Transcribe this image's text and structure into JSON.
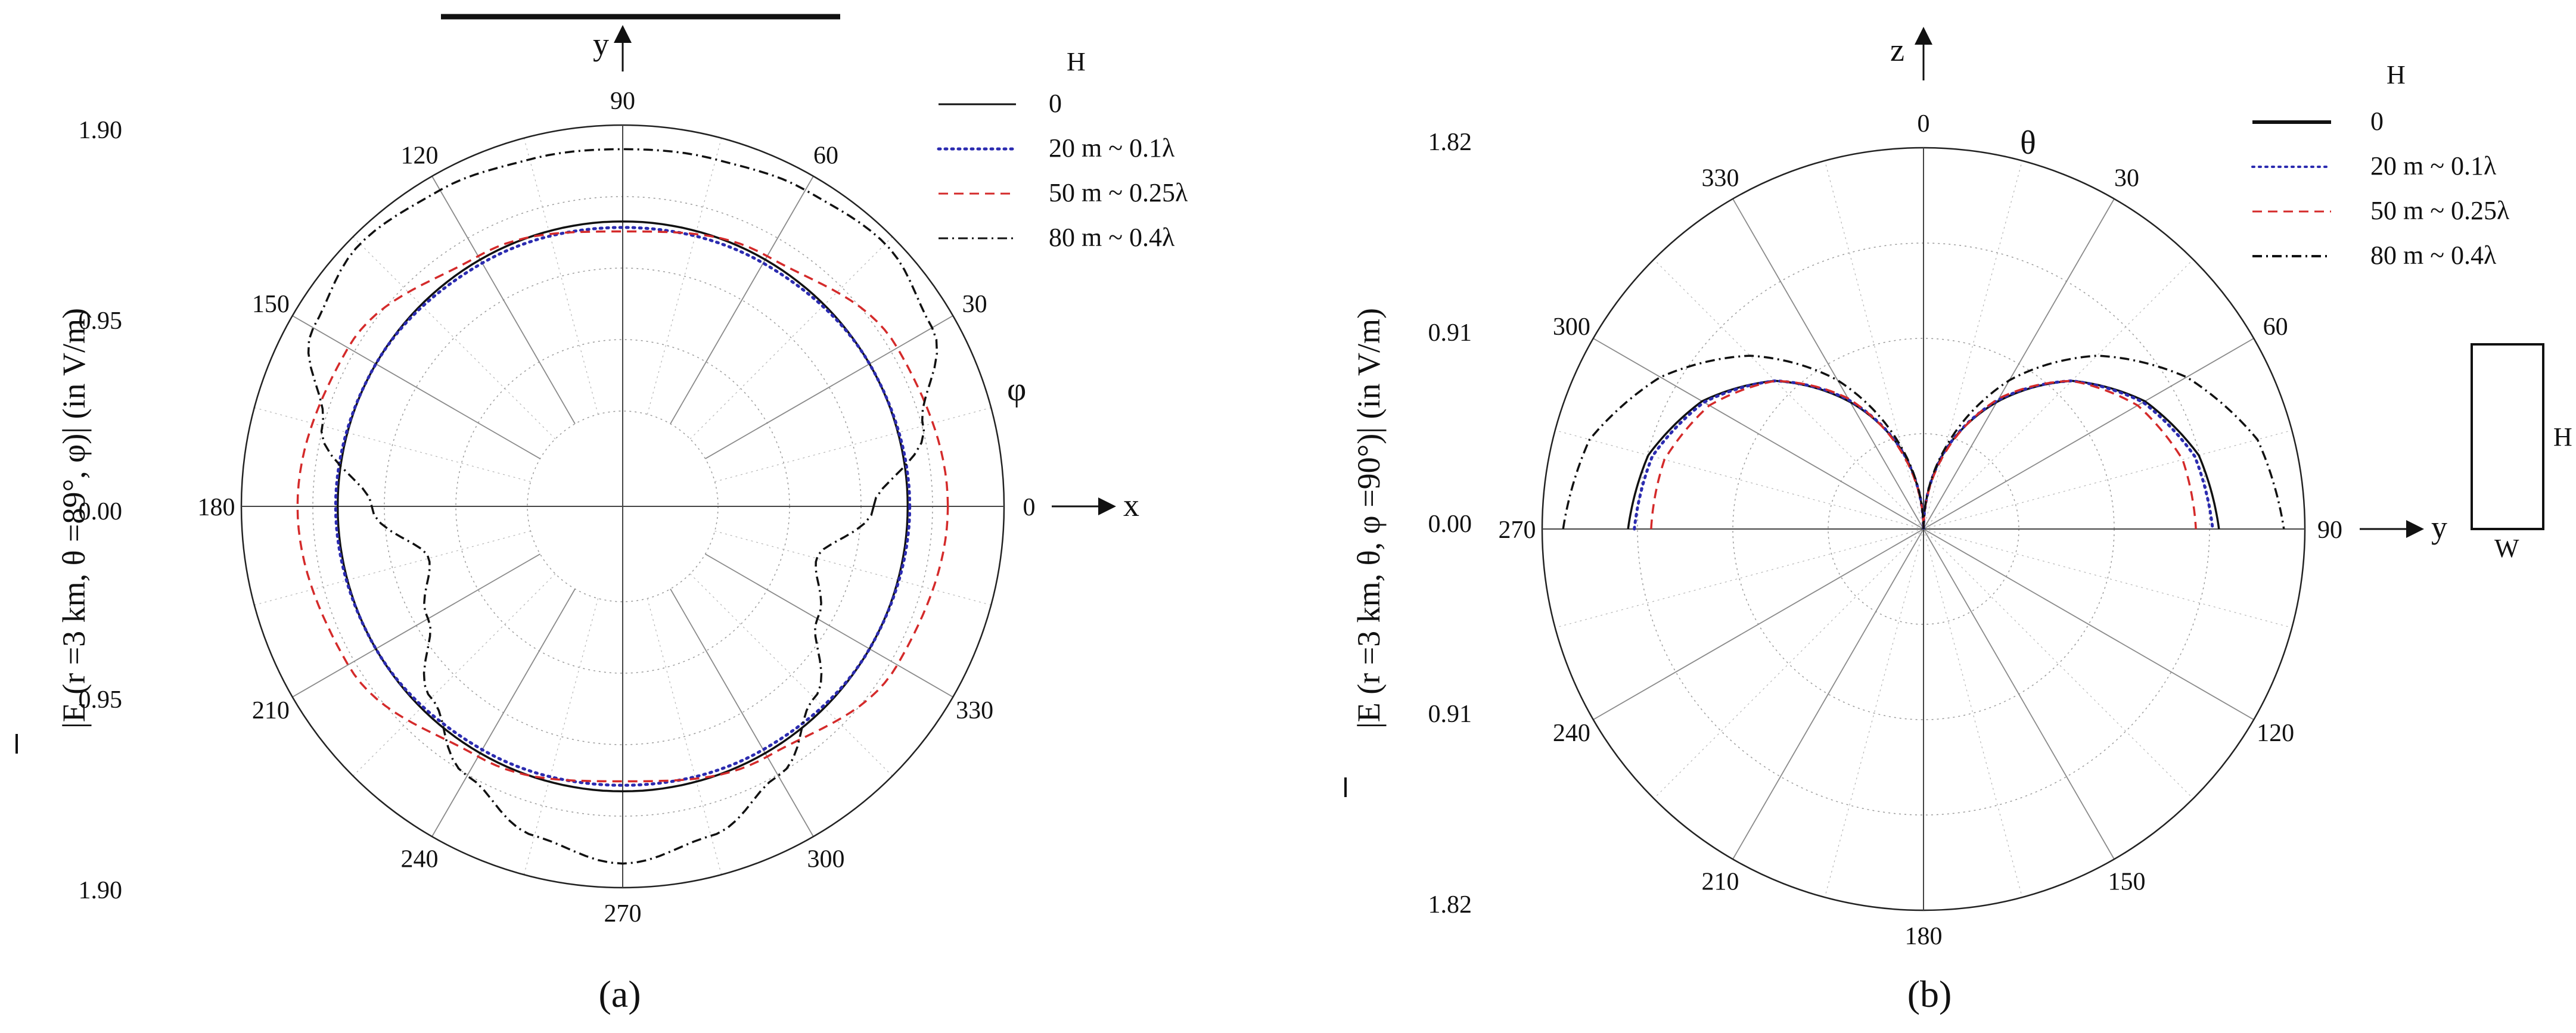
{
  "chart_data": [
    {
      "panel_label": "(a)",
      "type": "polar",
      "angle_symbol": "φ",
      "angle_ticks": [
        "90",
        "120",
        "150",
        "180",
        "210",
        "240",
        "270",
        "300",
        "330",
        "0",
        "30",
        "60"
      ],
      "radial_tick_labels": [
        "1.90",
        "0.95",
        "0.00",
        "0.95",
        "1.90"
      ],
      "rmax": 1.9,
      "ylabel": "|E (r =3 km, θ =89°, φ)| (in V/m)",
      "legend_title": "H",
      "axis_labels": {
        "x": "x",
        "y": "y"
      },
      "grid": true,
      "series": [
        {
          "name": "0",
          "style": "solid",
          "color": "#111111",
          "angles_deg": [
            0,
            30,
            60,
            90,
            120,
            150,
            180,
            210,
            240,
            270,
            300,
            330
          ],
          "values": [
            1.42,
            1.42,
            1.42,
            1.42,
            1.42,
            1.42,
            1.42,
            1.42,
            1.42,
            1.42,
            1.42,
            1.42
          ]
        },
        {
          "name": "20 m ~ 0.1λ",
          "style": "dotted",
          "color": "#2b2bb0",
          "angles_deg": [
            0,
            30,
            60,
            90,
            120,
            150,
            180,
            210,
            240,
            270,
            300,
            330
          ],
          "values": [
            1.43,
            1.42,
            1.4,
            1.39,
            1.4,
            1.42,
            1.43,
            1.42,
            1.4,
            1.39,
            1.4,
            1.42
          ]
        },
        {
          "name": "50 m ~ 0.25λ",
          "style": "dashed",
          "color": "#d42a2a",
          "angles_deg": [
            0,
            30,
            60,
            90,
            120,
            150,
            180,
            210,
            240,
            270,
            300,
            330
          ],
          "values": [
            1.62,
            1.58,
            1.44,
            1.37,
            1.44,
            1.58,
            1.62,
            1.58,
            1.44,
            1.37,
            1.44,
            1.58
          ]
        },
        {
          "name": "80 m ~ 0.4λ",
          "style": "dashdot",
          "color": "#111111",
          "angles_deg": [
            0,
            15,
            30,
            45,
            60,
            75,
            90,
            105,
            120,
            135,
            150,
            165,
            180,
            195,
            210,
            225,
            240,
            255,
            270,
            285,
            300,
            315,
            330,
            345
          ],
          "values": [
            1.25,
            1.55,
            1.78,
            1.85,
            1.82,
            1.79,
            1.78,
            1.79,
            1.82,
            1.85,
            1.78,
            1.55,
            1.25,
            1.0,
            1.12,
            1.35,
            1.55,
            1.7,
            1.78,
            1.7,
            1.55,
            1.35,
            1.12,
            1.0
          ]
        }
      ]
    },
    {
      "panel_label": "(b)",
      "type": "polar",
      "angle_symbol": "θ",
      "angle_ticks": [
        "0",
        "30",
        "60",
        "90",
        "120",
        "150",
        "180",
        "210",
        "240",
        "270",
        "300",
        "330"
      ],
      "radial_tick_labels": [
        "1.82",
        "0.91",
        "0.00",
        "0.91",
        "1.82"
      ],
      "rmax": 1.82,
      "ylabel": "|E (r =3 km, θ, φ =90°)| (in V/m)",
      "legend_title": "H",
      "axis_labels": {
        "z": "z",
        "y": "y"
      },
      "inset": {
        "height_label": "H",
        "width_label": "W"
      },
      "grid": true,
      "series": [
        {
          "name": "0",
          "style": "solid",
          "color": "#111111",
          "angles_deg": [
            0,
            15,
            30,
            45,
            60,
            75,
            90
          ],
          "values": [
            0.0,
            0.38,
            0.7,
            1.0,
            1.22,
            1.36,
            1.41
          ]
        },
        {
          "name": "20 m ~ 0.1λ",
          "style": "dotted",
          "color": "#2b2bb0",
          "angles_deg": [
            0,
            15,
            30,
            45,
            60,
            75,
            90
          ],
          "values": [
            0.0,
            0.38,
            0.71,
            1.0,
            1.21,
            1.34,
            1.38
          ]
        },
        {
          "name": "50 m ~ 0.25λ",
          "style": "dashed",
          "color": "#d42a2a",
          "angles_deg": [
            0,
            15,
            30,
            45,
            60,
            75,
            90
          ],
          "values": [
            0.0,
            0.36,
            0.72,
            1.0,
            1.18,
            1.28,
            1.3
          ]
        },
        {
          "name": "80 m ~ 0.4λ",
          "style": "dashdot",
          "color": "#111111",
          "angles_deg": [
            0,
            15,
            30,
            45,
            60,
            75,
            90
          ],
          "values": [
            0.0,
            0.4,
            0.82,
            1.17,
            1.45,
            1.65,
            1.72
          ]
        }
      ]
    }
  ]
}
